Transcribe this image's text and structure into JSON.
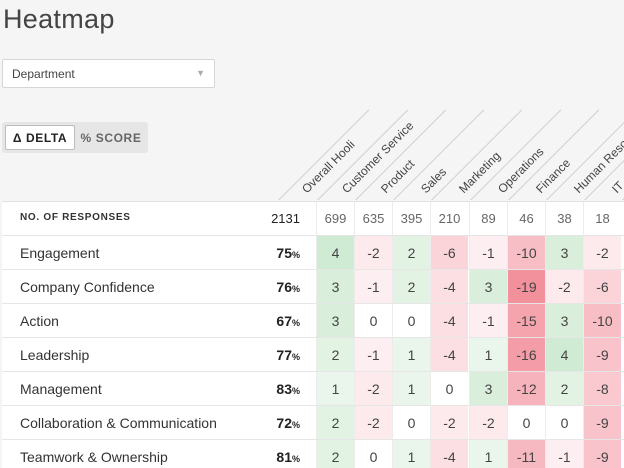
{
  "page": {
    "title": "Heatmap"
  },
  "filter": {
    "selected": "Department",
    "caret": "▼"
  },
  "mode_toggle": {
    "delta_label": "Δ DELTA",
    "score_label": "% SCORE",
    "active": "delta"
  },
  "columns": [
    "Overall Hooli",
    "Customer Service",
    "Product",
    "Sales",
    "Marketing",
    "Operations",
    "Finance",
    "Human Resources",
    "IT"
  ],
  "responses": {
    "label": "NO. OF RESPONSES",
    "total": "2131",
    "values": [
      "699",
      "635",
      "395",
      "210",
      "89",
      "46",
      "38",
      "18"
    ]
  },
  "rows": [
    {
      "name": "Engagement",
      "score": "75",
      "unit": "%",
      "values": [
        "4",
        "-2",
        "2",
        "-6",
        "-1",
        "-10",
        "3",
        "-2"
      ]
    },
    {
      "name": "Company Confidence",
      "score": "76",
      "unit": "%",
      "values": [
        "3",
        "-1",
        "2",
        "-4",
        "3",
        "-19",
        "-2",
        "-6"
      ]
    },
    {
      "name": "Action",
      "score": "67",
      "unit": "%",
      "values": [
        "3",
        "0",
        "0",
        "-4",
        "-1",
        "-15",
        "3",
        "-10"
      ]
    },
    {
      "name": "Leadership",
      "score": "77",
      "unit": "%",
      "values": [
        "2",
        "-1",
        "1",
        "-4",
        "1",
        "-16",
        "4",
        "-9"
      ]
    },
    {
      "name": "Management",
      "score": "83",
      "unit": "%",
      "values": [
        "1",
        "-2",
        "1",
        "0",
        "3",
        "-12",
        "2",
        "-8"
      ]
    },
    {
      "name": "Collaboration & Communication",
      "score": "72",
      "unit": "%",
      "values": [
        "2",
        "-2",
        "0",
        "-2",
        "-2",
        "0",
        "0",
        "-9"
      ]
    },
    {
      "name": "Teamwork & Ownership",
      "score": "81",
      "unit": "%",
      "values": [
        "2",
        "0",
        "1",
        "-4",
        "1",
        "-11",
        "-1",
        "-9"
      ]
    }
  ],
  "colors": {
    "positive": "#2e9e3e",
    "negative": "#e8344a",
    "background": "#f5f5f5"
  }
}
